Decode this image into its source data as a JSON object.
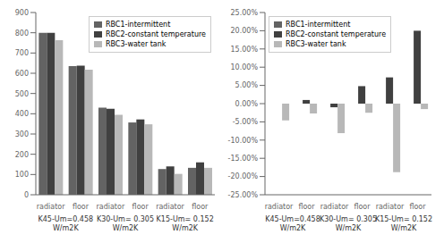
{
  "chart_data": [
    {
      "type": "bar",
      "categories": [
        "radiator",
        "floor",
        "radiator",
        "floor",
        "radiator",
        "floor"
      ],
      "annotations": [
        "K45-Um=0.458\nW/m2K",
        "K30-Um= 0.305\nW/m2K",
        "K15-Um= 0.152\nW/m2K"
      ],
      "series": [
        {
          "name": "RBC1-intermittent",
          "color": "#636363",
          "values": [
            800,
            635,
            430,
            357,
            127,
            133
          ]
        },
        {
          "name": "RBC2-constant temperature",
          "color": "#404040",
          "values": [
            800,
            637,
            425,
            372,
            140,
            160
          ]
        },
        {
          "name": "RBC3-water tank",
          "color": "#b8b8b8",
          "values": [
            763,
            618,
            395,
            348,
            103,
            133
          ]
        }
      ],
      "ylim": [
        0,
        900
      ],
      "yticks": [
        0,
        100,
        200,
        300,
        400,
        500,
        600,
        700,
        800,
        900
      ],
      "grid": false,
      "legend": "upper right"
    },
    {
      "type": "bar",
      "categories": [
        "radiator",
        "floor",
        "radiator",
        "floor",
        "radiator",
        "floor"
      ],
      "annotations": [
        "K45-Um=0.458\nW/m2K",
        "K30-Um= 0.305\nW/m2K",
        "K15-Um= 0.152\nW/m2K"
      ],
      "series": [
        {
          "name": "RBC1-intermittent",
          "color": "#636363",
          "values": [
            0.0,
            0.0,
            0.0,
            0.0,
            0.0,
            0.0
          ]
        },
        {
          "name": "RBC2-constant temperature",
          "color": "#404040",
          "values": [
            0.0,
            0.01,
            -0.01,
            0.048,
            0.072,
            0.2
          ]
        },
        {
          "name": "RBC3-water tank",
          "color": "#b8b8b8",
          "values": [
            -0.046,
            -0.027,
            -0.081,
            -0.025,
            -0.188,
            -0.015
          ]
        }
      ],
      "ylim": [
        -0.25,
        0.25
      ],
      "yticks": [
        {
          "value": -0.25,
          "label": "-25.00%"
        },
        {
          "value": -0.2,
          "label": "-20.00%"
        },
        {
          "value": -0.15,
          "label": "-15.00%"
        },
        {
          "value": -0.1,
          "label": "-10.00%"
        },
        {
          "value": -0.05,
          "label": "-5.00%"
        },
        {
          "value": 0.0,
          "label": "0.00%"
        },
        {
          "value": 0.05,
          "label": "5.00%"
        },
        {
          "value": 0.1,
          "label": "10.00%"
        },
        {
          "value": 0.15,
          "label": "15.00%"
        },
        {
          "value": 0.2,
          "label": "20.00%"
        },
        {
          "value": 0.25,
          "label": "25.00%"
        }
      ],
      "grid": false,
      "legend": "upper left"
    }
  ]
}
